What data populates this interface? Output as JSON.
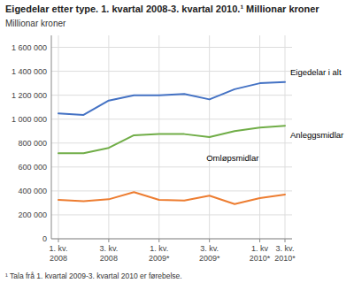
{
  "chart_data": {
    "type": "line",
    "title": "Eigedelar etter type. 1. kvartal 2008-3. kvartal 2010.¹ Millionar kroner",
    "ylabel": "Millionar kroner",
    "footnote": "¹ Tala frå 1. kvartal 2009-3. kvartal 2010 er førebelse.",
    "categories": [
      "1. kv.\n2008",
      null,
      "3. kv.\n2008",
      null,
      "1. kv.\n2009*",
      null,
      "3. kv.\n2009*",
      null,
      "1. kv\n2010*",
      "3. kv.\n2010*"
    ],
    "series": [
      {
        "name": "Eigedelar i alt",
        "color": "#4472C4",
        "values": [
          1048000,
          1035000,
          1155000,
          1200000,
          1200000,
          1210000,
          1165000,
          1250000,
          1300000,
          1310000
        ]
      },
      {
        "name": "Anleggsmidlar",
        "color": "#70AD47",
        "values": [
          715000,
          715000,
          760000,
          865000,
          875000,
          875000,
          850000,
          900000,
          930000,
          945000
        ]
      },
      {
        "name": "Omløpsmidlar",
        "color": "#ED7D31",
        "values": [
          325000,
          315000,
          330000,
          390000,
          325000,
          320000,
          360000,
          290000,
          340000,
          370000
        ]
      }
    ],
    "ylim": [
      0,
      1700000
    ],
    "yticks": [
      0,
      {
        "value": 200000,
        "label": "200 000"
      },
      {
        "value": 400000,
        "label": "400 000"
      },
      {
        "value": 600000,
        "label": "600 000"
      },
      {
        "value": 800000,
        "label": "800 000"
      },
      {
        "value": 1000000,
        "label": "1 000 000"
      },
      {
        "value": 1200000,
        "label": "1 200 000"
      },
      {
        "value": 1400000,
        "label": "1 400 000"
      },
      {
        "value": 1600000,
        "label": "1 600 000"
      }
    ],
    "grid": true
  }
}
